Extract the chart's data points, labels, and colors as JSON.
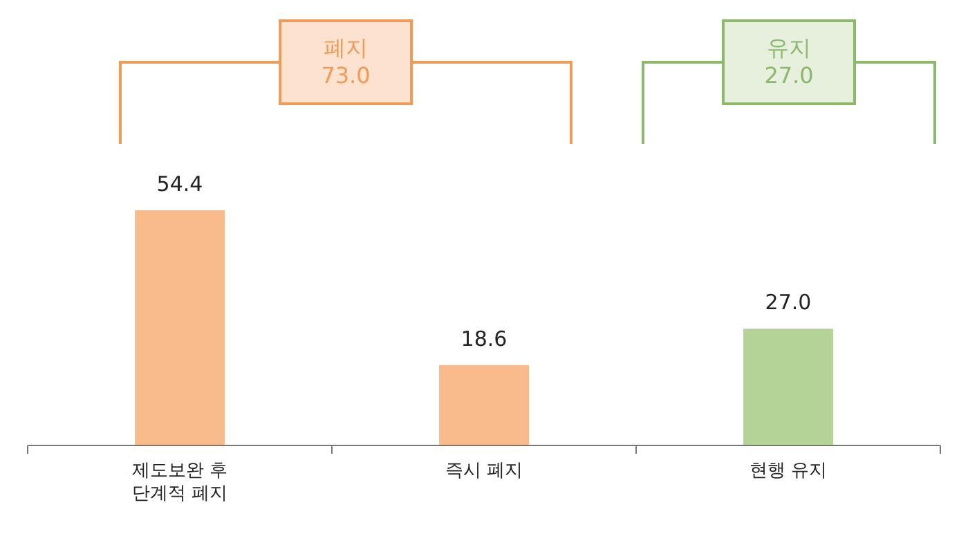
{
  "chart_data": {
    "type": "bar",
    "categories": [
      "제도보완 후\n단계적 폐지",
      "즉시 폐지",
      "현행 유지"
    ],
    "values": [
      54.4,
      18.6,
      27.0
    ],
    "colors": [
      "#f9bb8c",
      "#f9bb8c",
      "#b3d397"
    ],
    "value_labels": [
      "54.4",
      "18.6",
      "27.0"
    ],
    "annotations": [
      "폐지\n73.0",
      "유지\n27.0"
    ]
  }
}
